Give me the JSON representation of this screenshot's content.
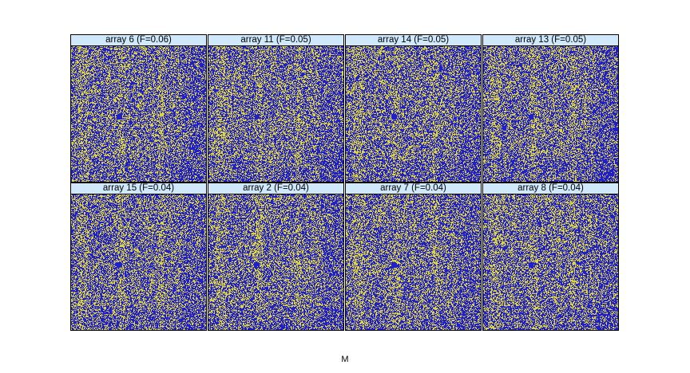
{
  "chart_data": {
    "type": "heatmap",
    "xlabel": "M",
    "colors": {
      "low": "#1f1fd0",
      "high": "#dcd53a",
      "strip": "#cfe8fb",
      "border": "#000000"
    },
    "layout": {
      "columns": 4,
      "rows": 2
    },
    "panels": [
      {
        "label": "array 6 (F=0.06)",
        "array": 6,
        "F": 0.06
      },
      {
        "label": "array 11 (F=0.05)",
        "array": 11,
        "F": 0.05
      },
      {
        "label": "array 14 (F=0.05)",
        "array": 14,
        "F": 0.05
      },
      {
        "label": "array 13 (F=0.05)",
        "array": 13,
        "F": 0.05
      },
      {
        "label": "array 15 (F=0.04)",
        "array": 15,
        "F": 0.04
      },
      {
        "label": "array 2 (F=0.04)",
        "array": 2,
        "F": 0.04
      },
      {
        "label": "array 7 (F=0.04)",
        "array": 7,
        "F": 0.04
      },
      {
        "label": "array 8 (F=0.04)",
        "array": 8,
        "F": 0.04
      }
    ]
  }
}
